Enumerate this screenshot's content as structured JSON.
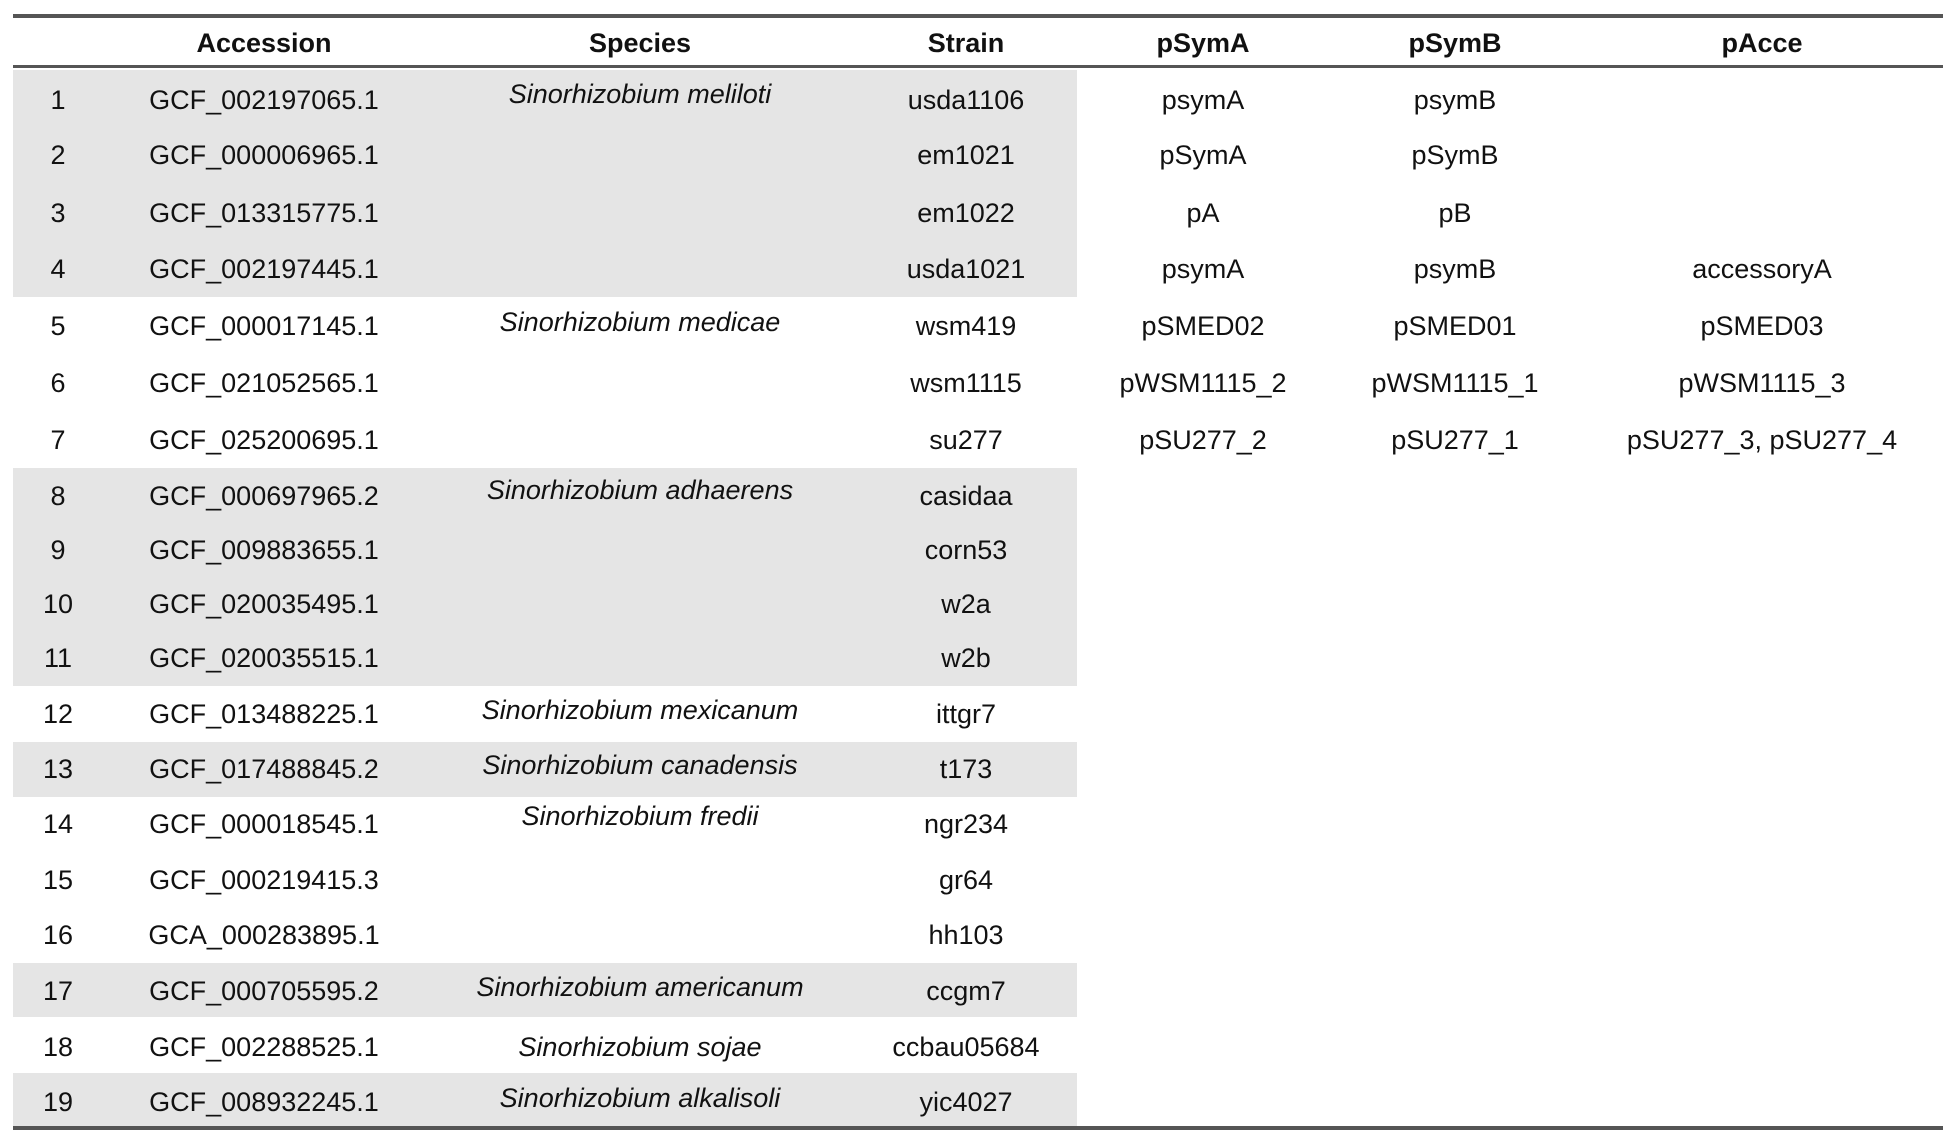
{
  "table": {
    "headers": [
      "",
      "Accession",
      "Species",
      "Strain",
      "pSymA",
      "pSymB",
      "pAcce"
    ],
    "rows": [
      {
        "n": "1",
        "acc": "GCF_002197065.1",
        "species": "Sinorhizobium meliloti",
        "strain": "usda1106",
        "psyma": "psymA",
        "psymb": "psymB",
        "pacce": ""
      },
      {
        "n": "2",
        "acc": "GCF_000006965.1",
        "species": "",
        "strain": "em1021",
        "psyma": "pSymA",
        "psymb": "pSymB",
        "pacce": ""
      },
      {
        "n": "3",
        "acc": "GCF_013315775.1",
        "species": "",
        "strain": "em1022",
        "psyma": "pA",
        "psymb": "pB",
        "pacce": ""
      },
      {
        "n": "4",
        "acc": "GCF_002197445.1",
        "species": "",
        "strain": "usda1021",
        "psyma": "psymA",
        "psymb": "psymB",
        "pacce": "accessoryA"
      },
      {
        "n": "5",
        "acc": "GCF_000017145.1",
        "species": "Sinorhizobium medicae",
        "strain": "wsm419",
        "psyma": "pSMED02",
        "psymb": "pSMED01",
        "pacce": "pSMED03"
      },
      {
        "n": "6",
        "acc": "GCF_021052565.1",
        "species": "",
        "strain": "wsm1115",
        "psyma": "pWSM1115_2",
        "psymb": "pWSM1115_1",
        "pacce": "pWSM1115_3"
      },
      {
        "n": "7",
        "acc": "GCF_025200695.1",
        "species": "",
        "strain": "su277",
        "psyma": "pSU277_2",
        "psymb": "pSU277_1",
        "pacce": "pSU277_3, pSU277_4"
      },
      {
        "n": "8",
        "acc": "GCF_000697965.2",
        "species": "Sinorhizobium adhaerens",
        "strain": "casidaa",
        "psyma": "",
        "psymb": "",
        "pacce": ""
      },
      {
        "n": "9",
        "acc": "GCF_009883655.1",
        "species": "",
        "strain": "corn53",
        "psyma": "",
        "psymb": "",
        "pacce": ""
      },
      {
        "n": "10",
        "acc": "GCF_020035495.1",
        "species": "",
        "strain": "w2a",
        "psyma": "",
        "psymb": "",
        "pacce": ""
      },
      {
        "n": "11",
        "acc": "GCF_020035515.1",
        "species": "",
        "strain": "w2b",
        "psyma": "",
        "psymb": "",
        "pacce": ""
      },
      {
        "n": "12",
        "acc": "GCF_013488225.1",
        "species": "Sinorhizobium mexicanum",
        "strain": "ittgr7",
        "psyma": "",
        "psymb": "",
        "pacce": ""
      },
      {
        "n": "13",
        "acc": "GCF_017488845.2",
        "species": "Sinorhizobium canadensis",
        "strain": "t173",
        "psyma": "",
        "psymb": "",
        "pacce": ""
      },
      {
        "n": "14",
        "acc": "GCF_000018545.1",
        "species": "Sinorhizobium fredii",
        "strain": "ngr234",
        "psyma": "",
        "psymb": "",
        "pacce": ""
      },
      {
        "n": "15",
        "acc": "GCF_000219415.3",
        "species": "",
        "strain": "gr64",
        "psyma": "",
        "psymb": "",
        "pacce": ""
      },
      {
        "n": "16",
        "acc": "GCA_000283895.1",
        "species": "",
        "strain": "hh103",
        "psyma": "",
        "psymb": "",
        "pacce": ""
      },
      {
        "n": "17",
        "acc": "GCF_000705595.2",
        "species": "Sinorhizobium americanum",
        "strain": "ccgm7",
        "psyma": "",
        "psymb": "",
        "pacce": ""
      },
      {
        "n": "18",
        "acc": "GCF_002288525.1",
        "species": "Sinorhizobium sojae",
        "strain": "ccbau05684",
        "psyma": "",
        "psymb": "",
        "pacce": ""
      },
      {
        "n": "19",
        "acc": "GCF_008932245.1",
        "species": "Sinorhizobium alkalisoli",
        "strain": "yic4027",
        "psyma": "",
        "psymb": "",
        "pacce": ""
      }
    ],
    "shaded_rows": [
      "1",
      "2",
      "3",
      "4",
      "8",
      "9",
      "10",
      "11",
      "13",
      "17",
      "19"
    ],
    "shade_color": "#e5e5e5",
    "rule_color": "#555555"
  }
}
